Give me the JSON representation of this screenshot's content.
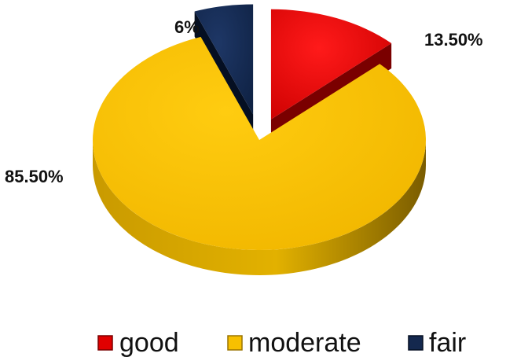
{
  "chart_data": {
    "type": "pie",
    "style": "3d-exploded",
    "legend_position": "bottom",
    "slices": [
      {
        "label": "good",
        "value": 13.5,
        "display": "13.50%",
        "color": "#e00000",
        "side_color": "#7a0000"
      },
      {
        "label": "moderate",
        "value": 85.5,
        "display": "85.50%",
        "color": "#f7c000",
        "side_color": "#9a7400"
      },
      {
        "label": "fair",
        "value": 6,
        "display": "6%",
        "color": "#14284e",
        "side_color": "#050f22"
      }
    ]
  }
}
